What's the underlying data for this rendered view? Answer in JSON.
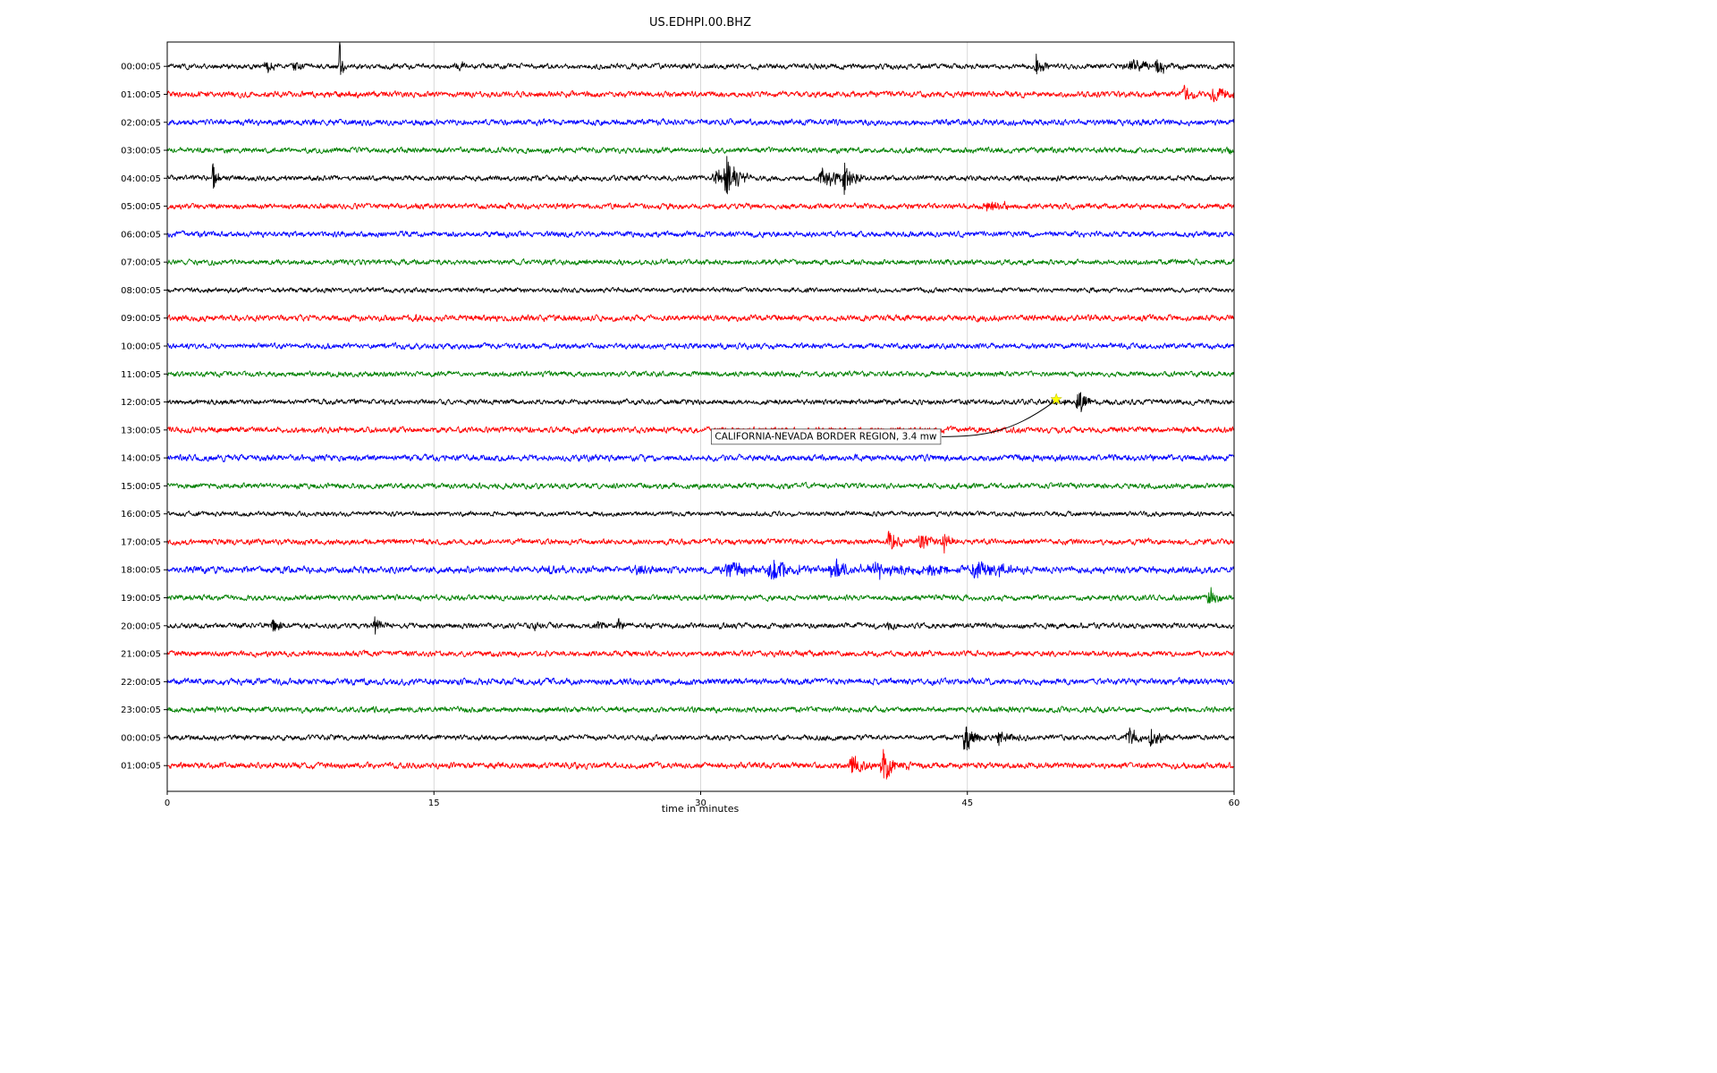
{
  "chart_data": {
    "type": "line",
    "title": "US.EDHPI.00.BHZ",
    "xlabel": "time in minutes",
    "x_range": [
      0,
      60
    ],
    "x_ticks": [
      0,
      15,
      30,
      45,
      60
    ],
    "grid_lines": [
      15,
      30,
      45
    ],
    "legend": "none",
    "annotation": {
      "text": "CALIFORNIA-NEVADA BORDER REGION, 3.4 mw",
      "event_row_label": "12:00:05",
      "event_time_min": 50.0,
      "marker": "star",
      "marker_color": "#ffff00"
    },
    "rows": [
      {
        "label": "00:00:05",
        "color": "#000000",
        "noise": 2.2,
        "events": [
          {
            "t": 5.6,
            "a": 6,
            "w": 0.5
          },
          {
            "t": 7.2,
            "a": 5,
            "w": 0.4
          },
          {
            "t": 9.7,
            "a": 26,
            "w": 0.12
          },
          {
            "t": 16.4,
            "a": 5,
            "w": 0.5
          },
          {
            "t": 48.9,
            "a": 12,
            "w": 0.3
          },
          {
            "t": 54.3,
            "a": 7,
            "w": 1.0
          },
          {
            "t": 55.7,
            "a": 9,
            "w": 0.5
          }
        ]
      },
      {
        "label": "01:00:05",
        "color": "#ff0000",
        "noise": 2.5,
        "events": [
          {
            "t": 57.2,
            "a": 12,
            "w": 0.35
          },
          {
            "t": 58.9,
            "a": 10,
            "w": 0.6
          }
        ]
      },
      {
        "label": "02:00:05",
        "color": "#0000ff",
        "noise": 2.5,
        "events": []
      },
      {
        "label": "03:00:05",
        "color": "#008000",
        "noise": 2.3,
        "events": [
          {
            "t": 59.7,
            "a": 4,
            "w": 0.3
          }
        ]
      },
      {
        "label": "04:00:05",
        "color": "#000000",
        "noise": 2.2,
        "events": [
          {
            "t": 2.6,
            "a": 20,
            "w": 0.2
          },
          {
            "t": 30.9,
            "a": 8,
            "w": 0.6
          },
          {
            "t": 31.5,
            "a": 24,
            "w": 0.5
          },
          {
            "t": 36.9,
            "a": 12,
            "w": 0.8
          },
          {
            "t": 38.1,
            "a": 18,
            "w": 0.4
          }
        ]
      },
      {
        "label": "05:00:05",
        "color": "#ff0000",
        "noise": 2.4,
        "events": [
          {
            "t": 46.2,
            "a": 6,
            "w": 0.8
          }
        ]
      },
      {
        "label": "06:00:05",
        "color": "#0000ff",
        "noise": 2.4,
        "events": []
      },
      {
        "label": "07:00:05",
        "color": "#008000",
        "noise": 2.2,
        "events": []
      },
      {
        "label": "08:00:05",
        "color": "#000000",
        "noise": 2.0,
        "events": []
      },
      {
        "label": "09:00:05",
        "color": "#ff0000",
        "noise": 2.6,
        "events": [
          {
            "t": 14.0,
            "a": 4,
            "w": 0.4
          }
        ]
      },
      {
        "label": "10:00:05",
        "color": "#0000ff",
        "noise": 2.3,
        "events": []
      },
      {
        "label": "11:00:05",
        "color": "#008000",
        "noise": 2.2,
        "events": []
      },
      {
        "label": "12:00:05",
        "color": "#000000",
        "noise": 2.2,
        "events": [
          {
            "t": 50.4,
            "a": 5,
            "w": 0.25
          },
          {
            "t": 51.3,
            "a": 14,
            "w": 0.4
          }
        ]
      },
      {
        "label": "13:00:05",
        "color": "#ff0000",
        "noise": 2.5,
        "events": []
      },
      {
        "label": "14:00:05",
        "color": "#0000ff",
        "noise": 2.6,
        "events": []
      },
      {
        "label": "15:00:05",
        "color": "#008000",
        "noise": 2.3,
        "events": []
      },
      {
        "label": "16:00:05",
        "color": "#000000",
        "noise": 2.0,
        "events": []
      },
      {
        "label": "17:00:05",
        "color": "#ff0000",
        "noise": 2.4,
        "events": [
          {
            "t": 40.6,
            "a": 16,
            "w": 0.4
          },
          {
            "t": 42.4,
            "a": 9,
            "w": 0.6
          },
          {
            "t": 43.7,
            "a": 11,
            "w": 0.35
          }
        ]
      },
      {
        "label": "18:00:05",
        "color": "#0000ff",
        "noise": 2.8,
        "events": [
          {
            "t": 21.2,
            "a": 5,
            "w": 0.7
          },
          {
            "t": 26.5,
            "a": 4,
            "w": 0.8
          },
          {
            "t": 31.8,
            "a": 7,
            "w": 1.4
          },
          {
            "t": 34.1,
            "a": 11,
            "w": 1.0
          },
          {
            "t": 37.6,
            "a": 10,
            "w": 1.3
          },
          {
            "t": 40.1,
            "a": 7,
            "w": 1.8
          },
          {
            "t": 43.0,
            "a": 6,
            "w": 1.2
          },
          {
            "t": 45.5,
            "a": 9,
            "w": 0.9
          },
          {
            "t": 46.9,
            "a": 6,
            "w": 0.7
          }
        ]
      },
      {
        "label": "19:00:05",
        "color": "#008000",
        "noise": 2.3,
        "events": [
          {
            "t": 58.6,
            "a": 12,
            "w": 0.35
          }
        ]
      },
      {
        "label": "20:00:05",
        "color": "#000000",
        "noise": 2.3,
        "events": [
          {
            "t": 6.0,
            "a": 8,
            "w": 0.4
          },
          {
            "t": 11.7,
            "a": 10,
            "w": 0.25
          },
          {
            "t": 20.7,
            "a": 5,
            "w": 0.4
          },
          {
            "t": 24.2,
            "a": 5,
            "w": 0.4
          },
          {
            "t": 25.4,
            "a": 6,
            "w": 0.35
          },
          {
            "t": 40.6,
            "a": 4,
            "w": 0.4
          }
        ]
      },
      {
        "label": "21:00:05",
        "color": "#ff0000",
        "noise": 2.4,
        "events": []
      },
      {
        "label": "22:00:05",
        "color": "#0000ff",
        "noise": 2.7,
        "events": []
      },
      {
        "label": "23:00:05",
        "color": "#008000",
        "noise": 2.4,
        "events": []
      },
      {
        "label": "00:00:05",
        "color": "#000000",
        "noise": 2.2,
        "events": [
          {
            "t": 44.9,
            "a": 24,
            "w": 0.35
          },
          {
            "t": 46.8,
            "a": 8,
            "w": 0.7
          },
          {
            "t": 54.1,
            "a": 10,
            "w": 0.7
          },
          {
            "t": 55.4,
            "a": 8,
            "w": 0.7
          }
        ]
      },
      {
        "label": "01:00:05",
        "color": "#ff0000",
        "noise": 2.6,
        "events": [
          {
            "t": 38.6,
            "a": 10,
            "w": 0.7
          },
          {
            "t": 40.3,
            "a": 20,
            "w": 0.5
          }
        ]
      }
    ]
  }
}
